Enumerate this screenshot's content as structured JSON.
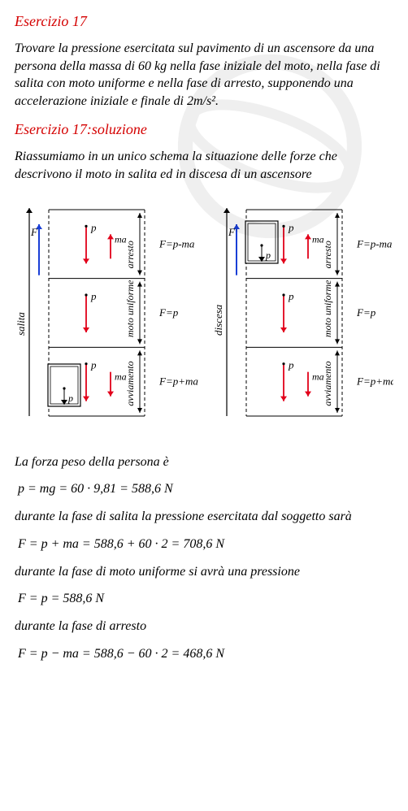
{
  "exercise": {
    "title": "Esercizio 17",
    "problem": "Trovare la pressione esercitata sul pavimento di  un ascensore da una persona della massa di 60 kg nella fase iniziale del moto, nella fase di salita con moto uniforme e nella fase di arresto, supponendo una accelerazione iniziale e finale di 2m/s².",
    "solution_title": "Esercizio 17:soluzione",
    "intro": "Riassumiamo in un unico schema la situazione delle forze che descrivono il moto in salita ed in discesa di un ascensore"
  },
  "diagram": {
    "colors": {
      "arrow_red": "#e2001a",
      "arrow_blue": "#1a3fd6",
      "line_black": "#000000",
      "text_black": "#000000"
    },
    "font_size": 13,
    "left": {
      "axis_label": "salita",
      "force_label": "F",
      "box_label": "p",
      "phases": [
        {
          "label": "arresto",
          "p": "p",
          "ma": "ma",
          "eq": "F=p-ma",
          "ma_dir": "up"
        },
        {
          "label": "moto uniforme",
          "p": "p",
          "ma": "",
          "eq": "F=p",
          "ma_dir": null
        },
        {
          "label": "avviamento",
          "p": "p",
          "ma": "ma",
          "eq": "F=p+ma",
          "ma_dir": "down"
        }
      ]
    },
    "right": {
      "axis_label": "discesa",
      "force_label": "F",
      "box_label": "p",
      "phases": [
        {
          "label": "arresto",
          "p": "p",
          "ma": "ma",
          "eq": "F=p-ma",
          "ma_dir": "up"
        },
        {
          "label": "moto uniforme",
          "p": "p",
          "ma": "",
          "eq": "F=p",
          "ma_dir": null
        },
        {
          "label": "avviamento",
          "p": "p",
          "ma": "ma",
          "eq": "F=p+ma",
          "ma_dir": "down"
        }
      ]
    }
  },
  "solution_text": {
    "l1": "La forza peso della persona è",
    "f1": "p = mg = 60 · 9,81 = 588,6 N",
    "l2": "durante la fase di salita la pressione esercitata dal soggetto sarà",
    "f2": "F = p + ma = 588,6 + 60 · 2 = 708,6  N",
    "l3": "durante la fase di moto uniforme si avrà una pressione",
    "f3": "F = p = 588,6 N",
    "l4": "durante la fase di arresto",
    "f4": "F = p − ma = 588,6 − 60 · 2 = 468,6 N"
  }
}
